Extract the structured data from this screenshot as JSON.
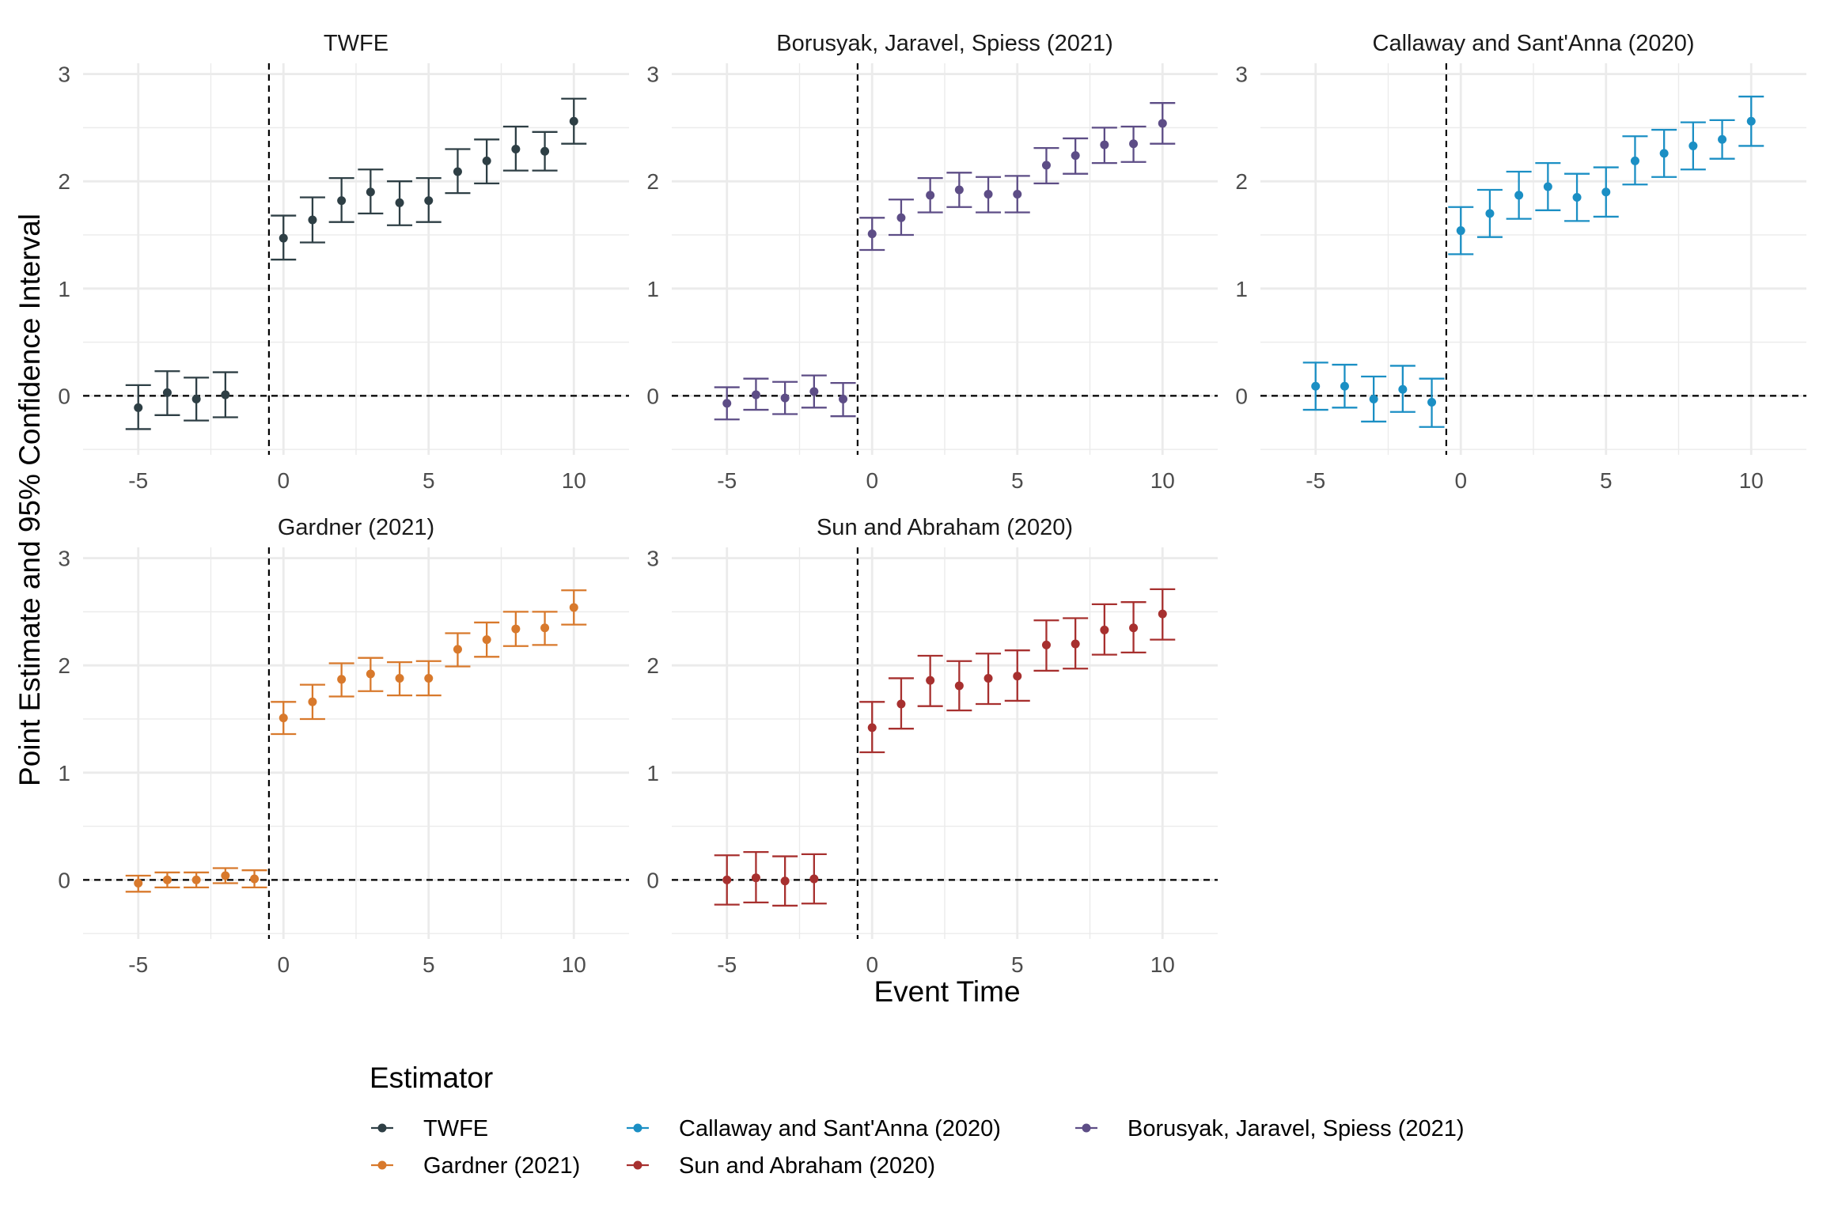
{
  "colors": {
    "TWFE": "#2E3F45",
    "Gardner (2021)": "#D8792C",
    "Callaway and Sant'Anna (2020)": "#1B8FC4",
    "Sun and Abraham (2020)": "#A7302F",
    "Borusyak, Jaravel, Spiess (2021)": "#5D4D86",
    "grid": "#EBEBEB",
    "reference_line": "#000000",
    "text": "#222222"
  },
  "chart_data": {
    "type": "scatter",
    "xlabel": "Event Time",
    "ylabel": "Point Estimate and 95% Confidence Interval",
    "xlim": [
      -6.9,
      11.9
    ],
    "ylim": [
      -0.55,
      3.1
    ],
    "xticks": [
      -5,
      0,
      5,
      10
    ],
    "yticks": [
      0,
      1,
      2,
      3
    ],
    "grid": true,
    "reference_lines": {
      "x": -0.5,
      "y": 0
    },
    "legend": {
      "title": "Estimator",
      "placement": "bottom",
      "entries": [
        "TWFE",
        "Gardner (2021)",
        "Callaway and Sant'Anna (2020)",
        "Sun and Abraham (2020)",
        "Borusyak, Jaravel, Spiess (2021)"
      ]
    },
    "panels": [
      {
        "title": "TWFE",
        "series": "TWFE",
        "points": [
          {
            "x": -5,
            "y": -0.11,
            "lo": -0.31,
            "hi": 0.1
          },
          {
            "x": -4,
            "y": 0.03,
            "lo": -0.18,
            "hi": 0.23
          },
          {
            "x": -3,
            "y": -0.03,
            "lo": -0.23,
            "hi": 0.17
          },
          {
            "x": -2,
            "y": 0.01,
            "lo": -0.2,
            "hi": 0.22
          },
          {
            "x": 0,
            "y": 1.47,
            "lo": 1.27,
            "hi": 1.68
          },
          {
            "x": 1,
            "y": 1.64,
            "lo": 1.43,
            "hi": 1.85
          },
          {
            "x": 2,
            "y": 1.82,
            "lo": 1.62,
            "hi": 2.03
          },
          {
            "x": 3,
            "y": 1.9,
            "lo": 1.7,
            "hi": 2.11
          },
          {
            "x": 4,
            "y": 1.8,
            "lo": 1.59,
            "hi": 2.0
          },
          {
            "x": 5,
            "y": 1.82,
            "lo": 1.62,
            "hi": 2.03
          },
          {
            "x": 6,
            "y": 2.09,
            "lo": 1.89,
            "hi": 2.3
          },
          {
            "x": 7,
            "y": 2.19,
            "lo": 1.98,
            "hi": 2.39
          },
          {
            "x": 8,
            "y": 2.3,
            "lo": 2.1,
            "hi": 2.51
          },
          {
            "x": 9,
            "y": 2.28,
            "lo": 2.1,
            "hi": 2.46
          },
          {
            "x": 10,
            "y": 2.56,
            "lo": 2.35,
            "hi": 2.77
          }
        ]
      },
      {
        "title": "Borusyak, Jaravel, Spiess (2021)",
        "series": "Borusyak, Jaravel, Spiess (2021)",
        "points": [
          {
            "x": -5,
            "y": -0.07,
            "lo": -0.22,
            "hi": 0.08
          },
          {
            "x": -4,
            "y": 0.01,
            "lo": -0.13,
            "hi": 0.16
          },
          {
            "x": -3,
            "y": -0.02,
            "lo": -0.17,
            "hi": 0.13
          },
          {
            "x": -2,
            "y": 0.04,
            "lo": -0.11,
            "hi": 0.19
          },
          {
            "x": -1,
            "y": -0.03,
            "lo": -0.19,
            "hi": 0.12
          },
          {
            "x": 0,
            "y": 1.51,
            "lo": 1.36,
            "hi": 1.66
          },
          {
            "x": 1,
            "y": 1.66,
            "lo": 1.5,
            "hi": 1.83
          },
          {
            "x": 2,
            "y": 1.87,
            "lo": 1.71,
            "hi": 2.03
          },
          {
            "x": 3,
            "y": 1.92,
            "lo": 1.76,
            "hi": 2.08
          },
          {
            "x": 4,
            "y": 1.88,
            "lo": 1.71,
            "hi": 2.04
          },
          {
            "x": 5,
            "y": 1.88,
            "lo": 1.71,
            "hi": 2.05
          },
          {
            "x": 6,
            "y": 2.15,
            "lo": 1.98,
            "hi": 2.31
          },
          {
            "x": 7,
            "y": 2.24,
            "lo": 2.07,
            "hi": 2.4
          },
          {
            "x": 8,
            "y": 2.34,
            "lo": 2.17,
            "hi": 2.5
          },
          {
            "x": 9,
            "y": 2.35,
            "lo": 2.18,
            "hi": 2.51
          },
          {
            "x": 10,
            "y": 2.54,
            "lo": 2.35,
            "hi": 2.73
          }
        ]
      },
      {
        "title": "Callaway and Sant'Anna (2020)",
        "series": "Callaway and Sant'Anna (2020)",
        "points": [
          {
            "x": -5,
            "y": 0.09,
            "lo": -0.13,
            "hi": 0.31
          },
          {
            "x": -4,
            "y": 0.09,
            "lo": -0.11,
            "hi": 0.29
          },
          {
            "x": -3,
            "y": -0.03,
            "lo": -0.24,
            "hi": 0.18
          },
          {
            "x": -2,
            "y": 0.06,
            "lo": -0.15,
            "hi": 0.28
          },
          {
            "x": -1,
            "y": -0.06,
            "lo": -0.29,
            "hi": 0.16
          },
          {
            "x": 0,
            "y": 1.54,
            "lo": 1.32,
            "hi": 1.76
          },
          {
            "x": 1,
            "y": 1.7,
            "lo": 1.48,
            "hi": 1.92
          },
          {
            "x": 2,
            "y": 1.87,
            "lo": 1.65,
            "hi": 2.09
          },
          {
            "x": 3,
            "y": 1.95,
            "lo": 1.73,
            "hi": 2.17
          },
          {
            "x": 4,
            "y": 1.85,
            "lo": 1.63,
            "hi": 2.07
          },
          {
            "x": 5,
            "y": 1.9,
            "lo": 1.67,
            "hi": 2.13
          },
          {
            "x": 6,
            "y": 2.19,
            "lo": 1.97,
            "hi": 2.42
          },
          {
            "x": 7,
            "y": 2.26,
            "lo": 2.04,
            "hi": 2.48
          },
          {
            "x": 8,
            "y": 2.33,
            "lo": 2.11,
            "hi": 2.55
          },
          {
            "x": 9,
            "y": 2.39,
            "lo": 2.21,
            "hi": 2.57
          },
          {
            "x": 10,
            "y": 2.56,
            "lo": 2.33,
            "hi": 2.79
          }
        ]
      },
      {
        "title": "Gardner (2021)",
        "series": "Gardner (2021)",
        "points": [
          {
            "x": -5,
            "y": -0.03,
            "lo": -0.11,
            "hi": 0.04
          },
          {
            "x": -4,
            "y": 0.0,
            "lo": -0.07,
            "hi": 0.07
          },
          {
            "x": -3,
            "y": 0.0,
            "lo": -0.07,
            "hi": 0.07
          },
          {
            "x": -2,
            "y": 0.04,
            "lo": -0.03,
            "hi": 0.11
          },
          {
            "x": -1,
            "y": 0.01,
            "lo": -0.07,
            "hi": 0.09
          },
          {
            "x": 0,
            "y": 1.51,
            "lo": 1.36,
            "hi": 1.66
          },
          {
            "x": 1,
            "y": 1.66,
            "lo": 1.5,
            "hi": 1.82
          },
          {
            "x": 2,
            "y": 1.87,
            "lo": 1.71,
            "hi": 2.02
          },
          {
            "x": 3,
            "y": 1.92,
            "lo": 1.76,
            "hi": 2.07
          },
          {
            "x": 4,
            "y": 1.88,
            "lo": 1.72,
            "hi": 2.03
          },
          {
            "x": 5,
            "y": 1.88,
            "lo": 1.72,
            "hi": 2.04
          },
          {
            "x": 6,
            "y": 2.15,
            "lo": 1.99,
            "hi": 2.3
          },
          {
            "x": 7,
            "y": 2.24,
            "lo": 2.08,
            "hi": 2.4
          },
          {
            "x": 8,
            "y": 2.34,
            "lo": 2.18,
            "hi": 2.5
          },
          {
            "x": 9,
            "y": 2.35,
            "lo": 2.19,
            "hi": 2.5
          },
          {
            "x": 10,
            "y": 2.54,
            "lo": 2.38,
            "hi": 2.7
          }
        ]
      },
      {
        "title": "Sun and Abraham (2020)",
        "series": "Sun and Abraham (2020)",
        "points": [
          {
            "x": -5,
            "y": 0.0,
            "lo": -0.23,
            "hi": 0.23
          },
          {
            "x": -4,
            "y": 0.02,
            "lo": -0.21,
            "hi": 0.26
          },
          {
            "x": -3,
            "y": -0.01,
            "lo": -0.24,
            "hi": 0.22
          },
          {
            "x": -2,
            "y": 0.01,
            "lo": -0.22,
            "hi": 0.24
          },
          {
            "x": 0,
            "y": 1.42,
            "lo": 1.19,
            "hi": 1.66
          },
          {
            "x": 1,
            "y": 1.64,
            "lo": 1.41,
            "hi": 1.88
          },
          {
            "x": 2,
            "y": 1.86,
            "lo": 1.62,
            "hi": 2.09
          },
          {
            "x": 3,
            "y": 1.81,
            "lo": 1.58,
            "hi": 2.04
          },
          {
            "x": 4,
            "y": 1.88,
            "lo": 1.64,
            "hi": 2.11
          },
          {
            "x": 5,
            "y": 1.9,
            "lo": 1.67,
            "hi": 2.14
          },
          {
            "x": 6,
            "y": 2.19,
            "lo": 1.95,
            "hi": 2.42
          },
          {
            "x": 7,
            "y": 2.2,
            "lo": 1.97,
            "hi": 2.44
          },
          {
            "x": 8,
            "y": 2.33,
            "lo": 2.1,
            "hi": 2.57
          },
          {
            "x": 9,
            "y": 2.35,
            "lo": 2.12,
            "hi": 2.59
          },
          {
            "x": 10,
            "y": 2.48,
            "lo": 2.24,
            "hi": 2.71
          }
        ]
      }
    ]
  }
}
